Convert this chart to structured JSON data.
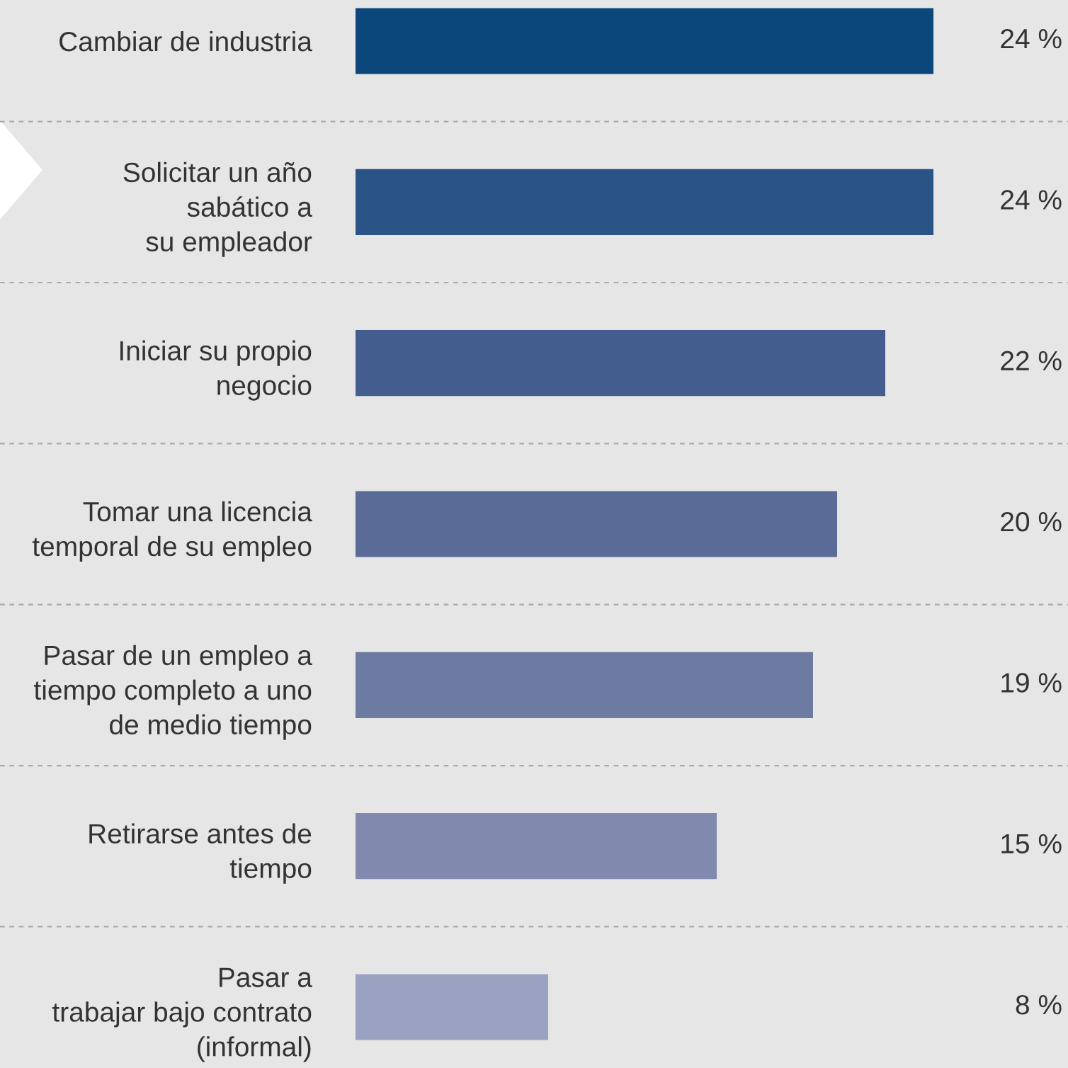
{
  "chart_data": {
    "type": "bar",
    "orientation": "horizontal",
    "categories": [
      "Cambiar de industria",
      "Solicitar un año\nsabático a\nsu empleador",
      "Iniciar su propio\nnegocio",
      "Tomar una licencia\ntemporal de su empleo",
      "Pasar de un empleo a\ntiempo completo a uno\nde medio tiempo",
      "Retirarse antes de\ntiempo",
      "Pasar a\ntrabajar bajo contrato\n(informal)"
    ],
    "values": [
      24,
      24,
      22,
      20,
      19,
      15,
      8
    ],
    "colors": [
      "#0b477b",
      "#2a5486",
      "#435e8e",
      "#5a6b98",
      "#6d7aa1",
      "#818aae",
      "#9ba1c1"
    ],
    "value_labels": [
      "24 %",
      "24 %",
      "22 %",
      "20 %",
      "19 %",
      "15 %",
      "8 %"
    ],
    "tick_labels": "y"
  }
}
